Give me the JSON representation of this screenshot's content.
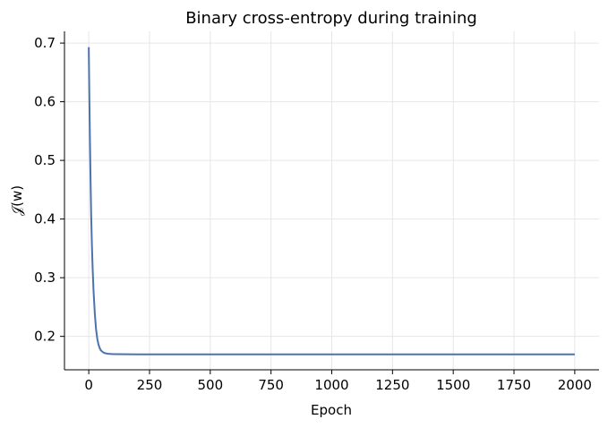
{
  "chart_data": {
    "type": "line",
    "title": "Binary cross-entropy during training",
    "xlabel": "Epoch",
    "ylabel": "𝒥(w)",
    "xlim": [
      -100,
      2100
    ],
    "ylim": [
      0.143,
      0.72
    ],
    "xticks": [
      0,
      250,
      500,
      750,
      1000,
      1250,
      1500,
      1750,
      2000
    ],
    "yticks": [
      0.2,
      0.3,
      0.4,
      0.5,
      0.6,
      0.7
    ],
    "ytick_labels": [
      "0.2",
      "0.3",
      "0.4",
      "0.5",
      "0.6",
      "0.7"
    ],
    "grid": true,
    "series": [
      {
        "color": "#4c72b0",
        "x": [
          0,
          2,
          5,
          8,
          10,
          13,
          16,
          20,
          25,
          30,
          35,
          40,
          45,
          50,
          60,
          70,
          80,
          100,
          150,
          200,
          300,
          500,
          1000,
          1500,
          2000
        ],
        "y": [
          0.693,
          0.62,
          0.53,
          0.45,
          0.405,
          0.355,
          0.315,
          0.275,
          0.238,
          0.212,
          0.196,
          0.186,
          0.18,
          0.176,
          0.1725,
          0.171,
          0.1702,
          0.1698,
          0.1695,
          0.1694,
          0.1693,
          0.1693,
          0.1693,
          0.1693,
          0.1693
        ]
      }
    ]
  }
}
